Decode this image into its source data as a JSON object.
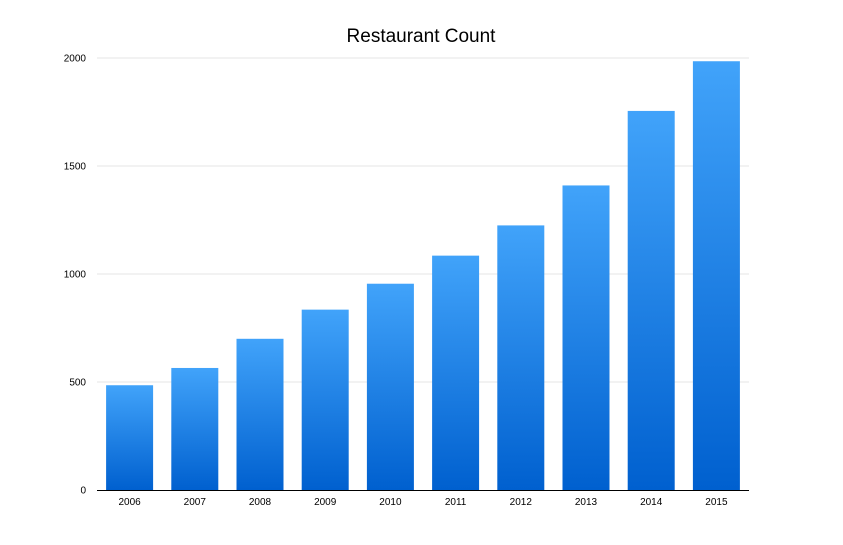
{
  "chart_data": {
    "type": "bar",
    "title": "Restaurant Count",
    "xlabel": "",
    "ylabel": "",
    "categories": [
      "2006",
      "2007",
      "2008",
      "2009",
      "2010",
      "2011",
      "2012",
      "2013",
      "2014",
      "2015"
    ],
    "values": [
      485,
      565,
      700,
      835,
      955,
      1085,
      1225,
      1410,
      1755,
      1985
    ],
    "ylim": [
      0,
      2000
    ],
    "yticks": [
      0,
      500,
      1000,
      1500,
      2000
    ],
    "grid": true,
    "legend": "none",
    "colors": {
      "bar_top": "#41a3fa",
      "bar_bottom": "#0060cf",
      "grid": "#e6e6e6",
      "axis": "#000000"
    }
  }
}
